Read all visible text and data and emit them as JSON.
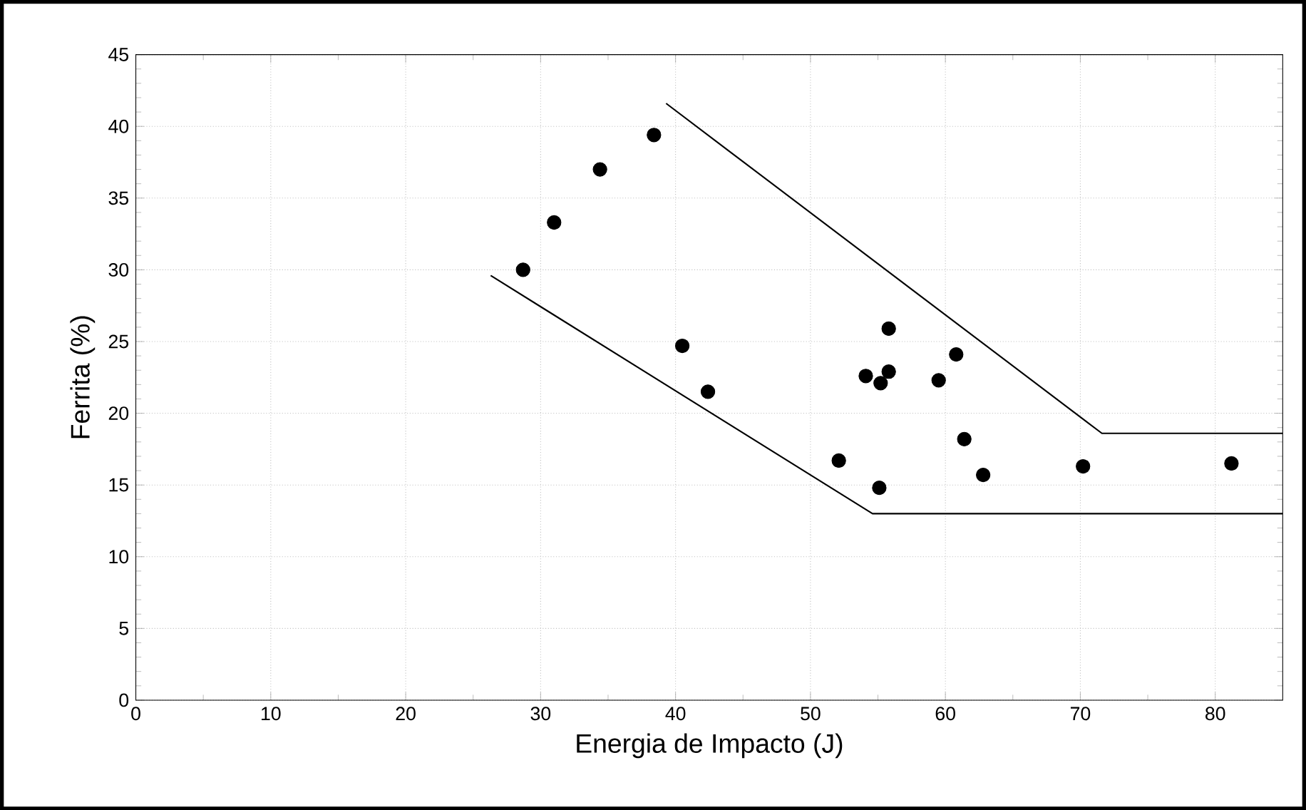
{
  "chart_data": {
    "type": "scatter",
    "xlabel": "Energia de Impacto (J)",
    "ylabel": "Ferrita (%)",
    "xlim": [
      0,
      85
    ],
    "ylim": [
      0,
      45
    ],
    "xticks": [
      0,
      10,
      20,
      30,
      40,
      50,
      60,
      70,
      80
    ],
    "yticks": [
      0,
      5,
      10,
      15,
      20,
      25,
      30,
      35,
      40,
      45
    ],
    "grid": true,
    "series": [
      {
        "marker": "circle",
        "color": "#000000",
        "x": [
          28.7,
          31.0,
          34.4,
          38.4,
          40.5,
          42.4,
          55.8,
          60.8,
          54.1,
          55.2,
          55.8,
          59.5,
          61.4,
          62.8,
          52.1,
          55.1,
          70.2,
          81.2
        ],
        "values": [
          30.0,
          33.3,
          37.0,
          39.4,
          24.7,
          21.5,
          25.9,
          24.1,
          22.6,
          22.1,
          22.9,
          22.3,
          18.2,
          15.7,
          16.7,
          14.8,
          16.3,
          16.5
        ]
      },
      {
        "type": "line",
        "marker": "none",
        "color": "#000000",
        "x": [
          26.3,
          54.6,
          85
        ],
        "values": [
          29.6,
          13.0,
          13.0
        ]
      },
      {
        "type": "line",
        "marker": "none",
        "color": "#000000",
        "x": [
          39.3,
          71.6,
          85
        ],
        "values": [
          41.6,
          18.6,
          18.6
        ]
      }
    ]
  }
}
